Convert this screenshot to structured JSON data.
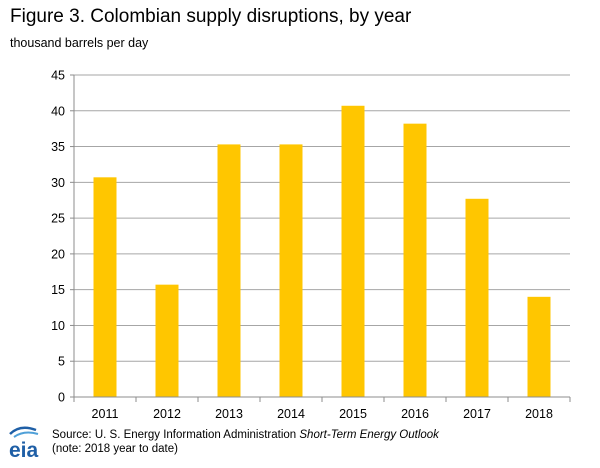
{
  "figure": {
    "title": "Figure 3. Colombian supply disruptions, by year",
    "units": "thousand barrels per day"
  },
  "source": {
    "prefix": "Source: U. S. Energy Information Administration ",
    "publication": "Short-Term Energy Outlook",
    "note": "(note: 2018 year to date)"
  },
  "logo": {
    "text": "eia",
    "icon": "eia-logo-icon"
  },
  "colors": {
    "bar": "#FFC600",
    "grid": "#A6A6A6",
    "axis": "#8C8C8C",
    "logo_blue": "#1F5FA6"
  },
  "chart_data": {
    "type": "bar",
    "title": "Figure 3. Colombian supply disruptions, by year",
    "ylabel": "thousand barrels per day",
    "xlabel": "",
    "categories": [
      "2011",
      "2012",
      "2013",
      "2014",
      "2015",
      "2016",
      "2017",
      "2018"
    ],
    "values": [
      30.7,
      15.7,
      35.3,
      35.3,
      40.7,
      38.2,
      27.7,
      14.0
    ],
    "ylim": [
      0,
      45
    ],
    "yticks": [
      0,
      5,
      10,
      15,
      20,
      25,
      30,
      35,
      40,
      45
    ],
    "grid": true,
    "legend": "none"
  }
}
